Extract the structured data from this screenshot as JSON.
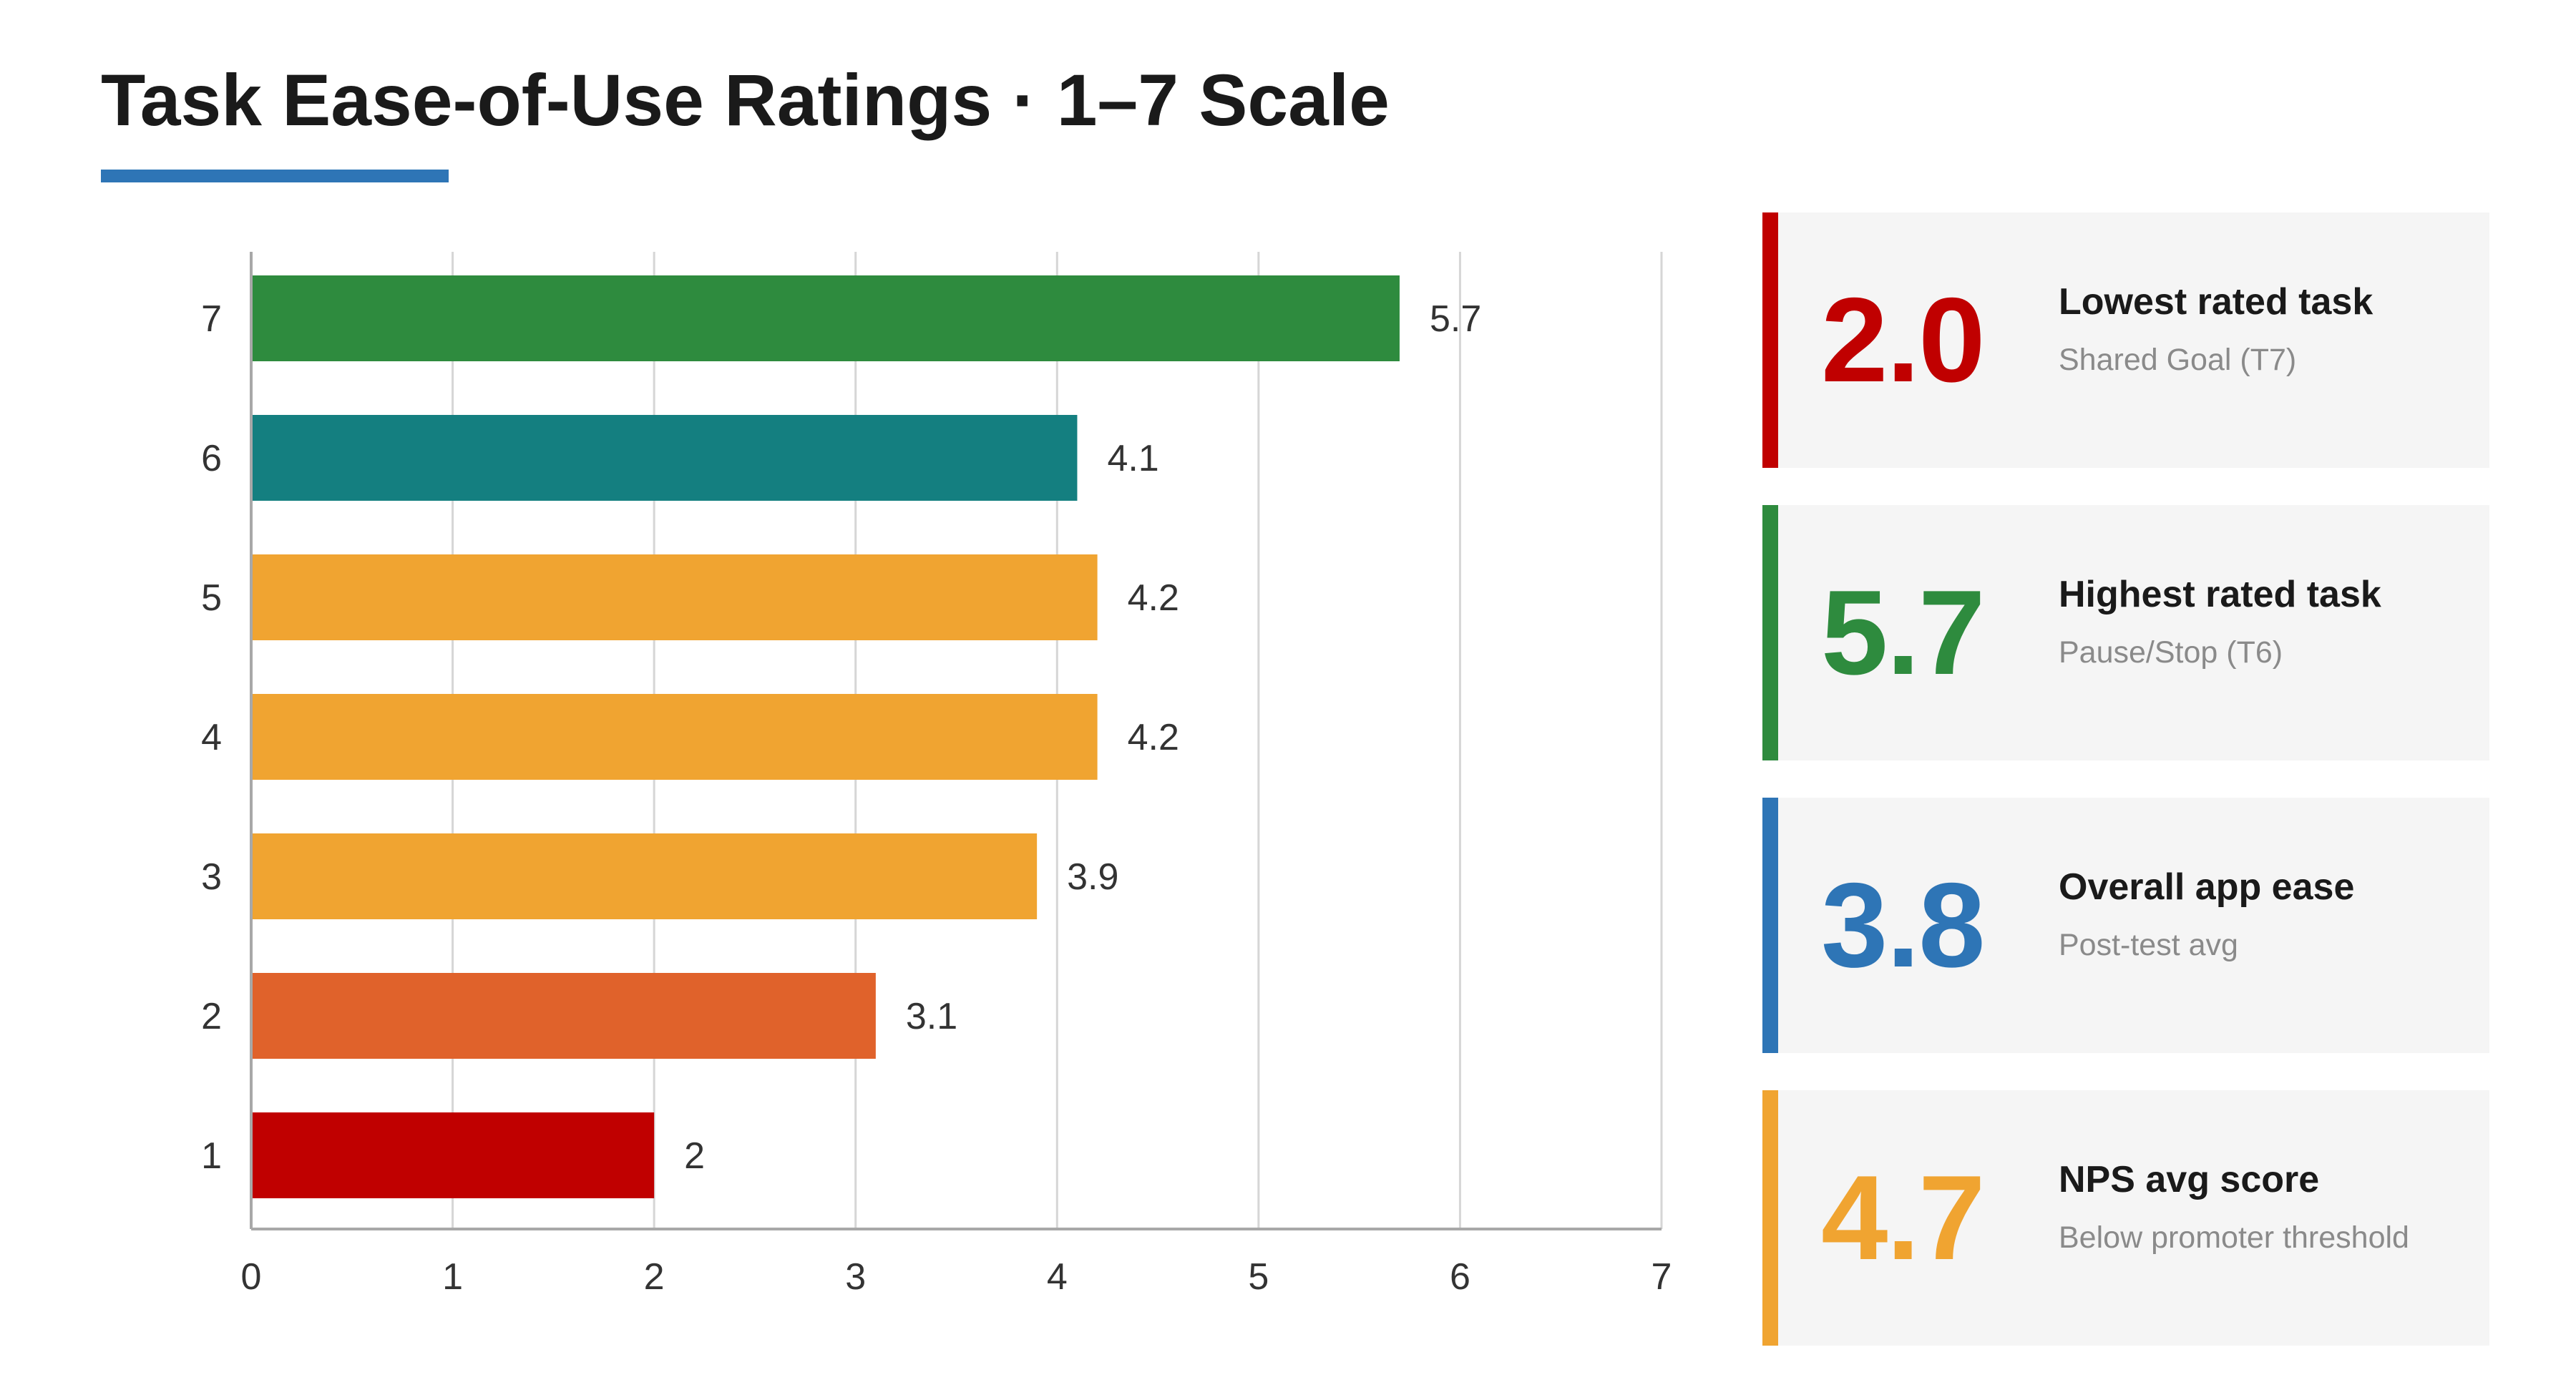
{
  "header": {
    "title": "Task Ease-of-Use Ratings · 1–7 Scale"
  },
  "chart_data": {
    "type": "bar",
    "orientation": "horizontal",
    "categories": [
      "1",
      "2",
      "3",
      "4",
      "5",
      "6",
      "7"
    ],
    "values": [
      2,
      3.1,
      3.9,
      4.2,
      4.2,
      4.1,
      5.7
    ],
    "value_labels": [
      "2",
      "3.1",
      "3.9",
      "4.2",
      "4.2",
      "4.1",
      "5.7"
    ],
    "bar_colors": [
      "#c00000",
      "#e0622b",
      "#f0a431",
      "#f0a431",
      "#f0a431",
      "#147f80",
      "#2e8b3e"
    ],
    "xlim": [
      0,
      7
    ],
    "x_ticks": [
      "0",
      "1",
      "2",
      "3",
      "4",
      "5",
      "6",
      "7"
    ],
    "grid": true,
    "title": "Task Ease-of-Use Ratings · 1–7 Scale",
    "xlabel": "",
    "ylabel": ""
  },
  "cards": [
    {
      "value": "2.0",
      "label": "Lowest rated task",
      "sub": "Shared Goal (T7)",
      "color": "#c00000"
    },
    {
      "value": "5.7",
      "label": "Highest rated task",
      "sub": "Pause/Stop (T6)",
      "color": "#2e8b3e"
    },
    {
      "value": "3.8",
      "label": "Overall app ease",
      "sub": "Post-test avg",
      "color": "#2e75b6"
    },
    {
      "value": "4.7",
      "label": "NPS avg score",
      "sub": "Below promoter threshold",
      "color": "#f0a431"
    }
  ]
}
